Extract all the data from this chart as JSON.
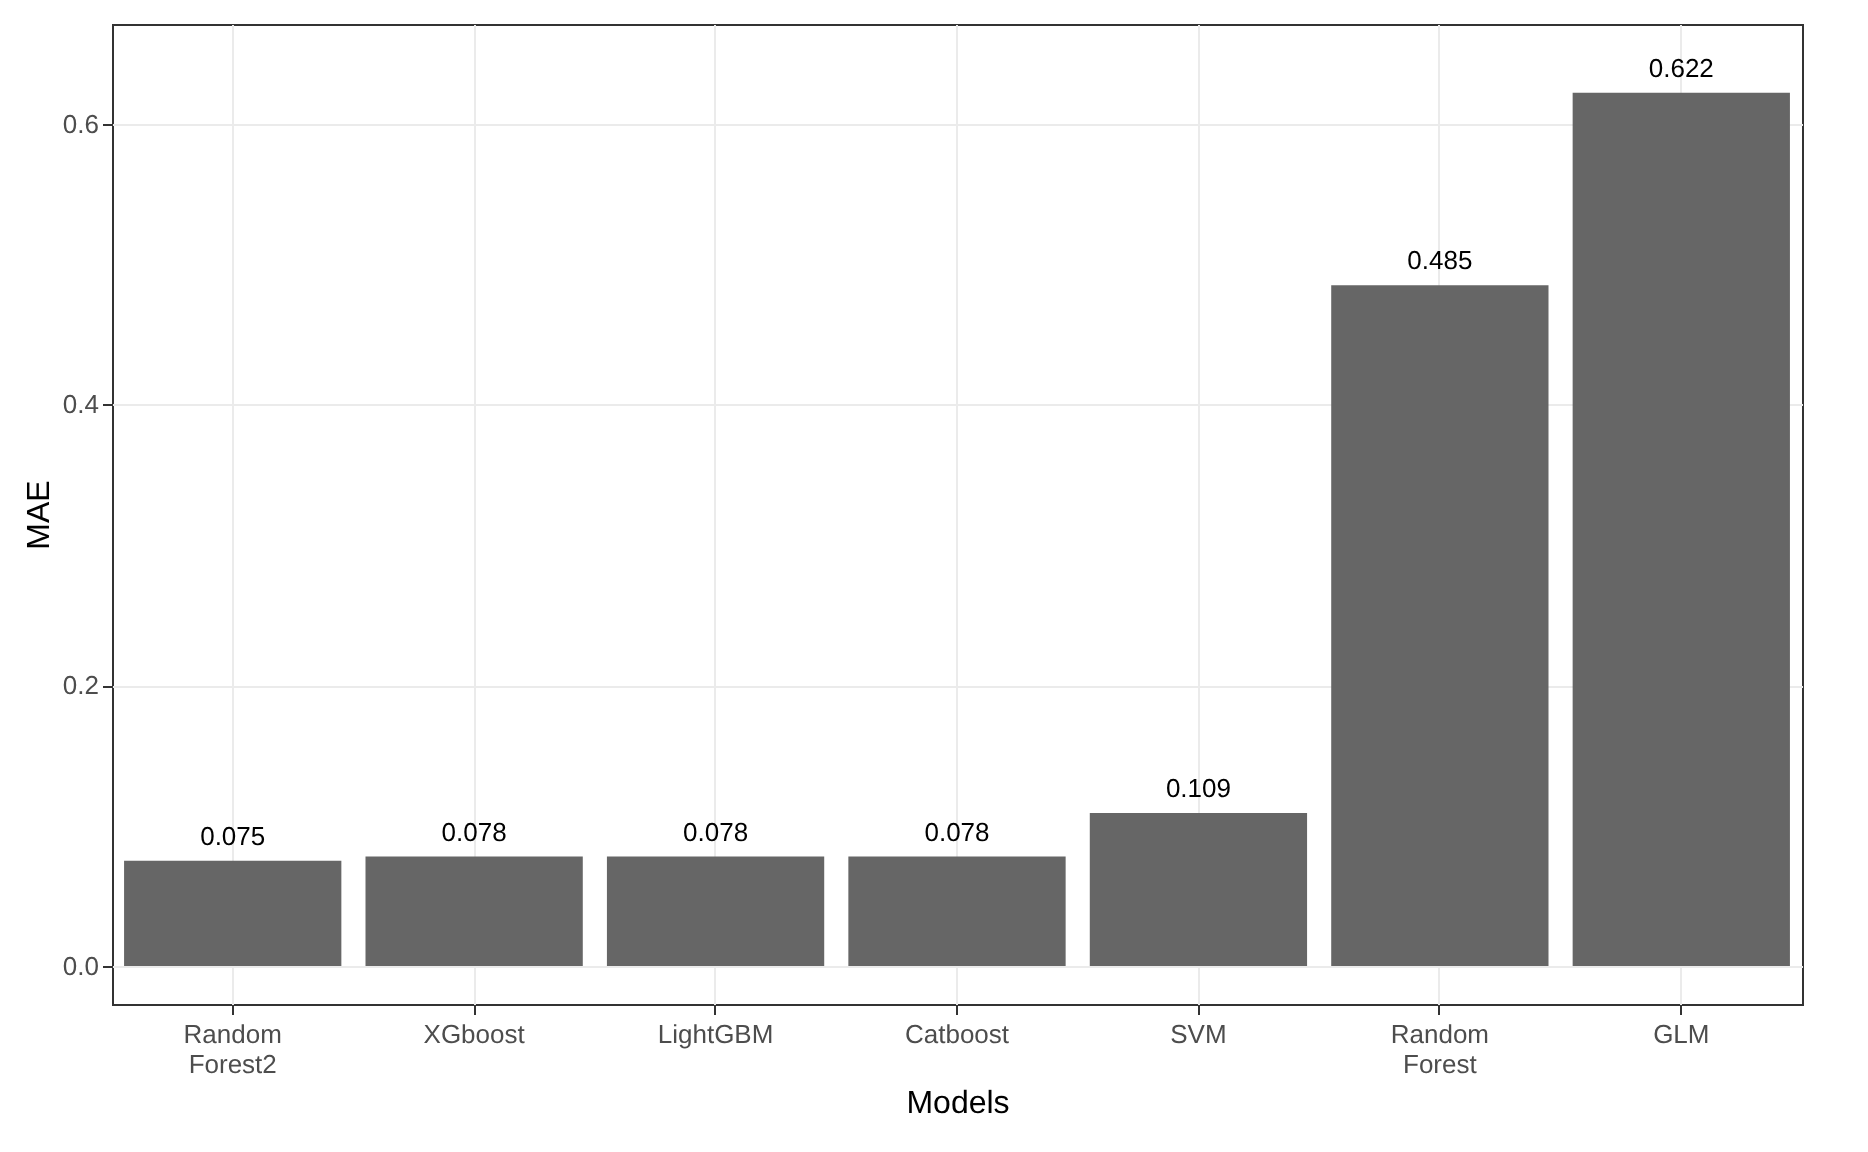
{
  "chart_data": {
    "type": "bar",
    "xlabel": "Models",
    "ylabel": "MAE",
    "categories": [
      "Random Forest2",
      "XGboost",
      "LightGBM",
      "Catboost",
      "SVM",
      "Random Forest",
      "GLM"
    ],
    "values": [
      0.075,
      0.078,
      0.078,
      0.078,
      0.109,
      0.485,
      0.622
    ],
    "color": "#666666",
    "ylim": [
      -0.027,
      0.671
    ],
    "yticks": [
      {
        "value": 0,
        "label": "0.0"
      },
      {
        "value": 0.2,
        "label": "0.2"
      },
      {
        "value": 0.4,
        "label": "0.4"
      },
      {
        "value": 0.6,
        "label": "0.6"
      }
    ],
    "grid": true,
    "data_labels": true
  }
}
